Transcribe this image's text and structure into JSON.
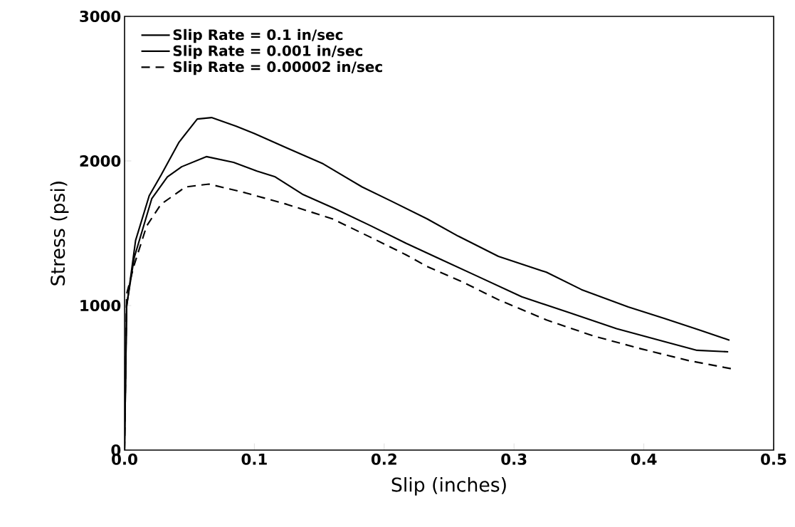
{
  "chart_data": {
    "type": "line",
    "xlabel": "Slip (inches)",
    "ylabel": "Stress (psi)",
    "xlim": [
      0,
      0.5
    ],
    "ylim": [
      0,
      3000
    ],
    "xticks": [
      {
        "value": 0,
        "label": "0.0"
      },
      0.1,
      0.2,
      0.3,
      0.4,
      0.5
    ],
    "yticks": [
      0,
      1000,
      2000,
      3000
    ],
    "legend": "top left",
    "grid": false,
    "series": [
      {
        "name": "Slip Rate = 0.1 in/sec",
        "color": "#000000",
        "line_style": "solid",
        "x": [
          0,
          0.0016,
          0.0085,
          0.019,
          0.028,
          0.042,
          0.056,
          0.067,
          0.086,
          0.1,
          0.125,
          0.153,
          0.183,
          0.206,
          0.233,
          0.257,
          0.288,
          0.325,
          0.352,
          0.388,
          0.416,
          0.443,
          0.466
        ],
        "values": [
          0,
          990,
          1450,
          1760,
          1900,
          2130,
          2290,
          2300,
          2240,
          2190,
          2090,
          1980,
          1820,
          1720,
          1600,
          1480,
          1340,
          1230,
          1110,
          990,
          910,
          830,
          760
        ]
      },
      {
        "name": "Slip Rate = 0.001 in/sec",
        "color": "#000000",
        "line_style": "solid",
        "x": [
          0,
          0.0016,
          0.0074,
          0.021,
          0.033,
          0.044,
          0.063,
          0.084,
          0.102,
          0.116,
          0.137,
          0.162,
          0.19,
          0.217,
          0.241,
          0.27,
          0.306,
          0.343,
          0.379,
          0.416,
          0.441,
          0.465
        ],
        "values": [
          0,
          1000,
          1330,
          1740,
          1890,
          1960,
          2030,
          1990,
          1930,
          1890,
          1770,
          1670,
          1550,
          1430,
          1330,
          1210,
          1060,
          950,
          840,
          750,
          690,
          680
        ]
      },
      {
        "name": "Slip Rate = 0.00002 in/sec",
        "color": "#000000",
        "line_style": "dashed",
        "x": [
          0,
          0.0016,
          0.0074,
          0.017,
          0.028,
          0.047,
          0.065,
          0.093,
          0.125,
          0.16,
          0.19,
          0.217,
          0.233,
          0.261,
          0.288,
          0.325,
          0.361,
          0.398,
          0.434,
          0.469
        ],
        "values": [
          0,
          1080,
          1280,
          1550,
          1700,
          1820,
          1840,
          1780,
          1700,
          1600,
          1470,
          1350,
          1270,
          1160,
          1040,
          900,
          790,
          700,
          620,
          560
        ]
      }
    ]
  }
}
